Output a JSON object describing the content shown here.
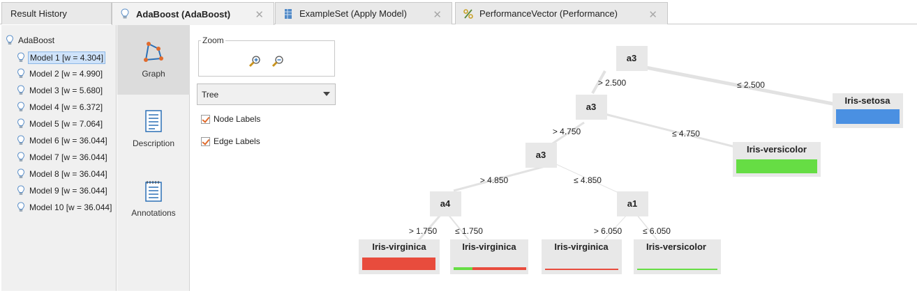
{
  "tabs": [
    {
      "label": "Result History",
      "icon": "",
      "active": false
    },
    {
      "label": "AdaBoost (AdaBoost)",
      "icon": "bulb-icon",
      "active": true
    },
    {
      "label": "ExampleSet (Apply Model)",
      "icon": "table-icon",
      "active": false
    },
    {
      "label": "PerformanceVector (Performance)",
      "icon": "percent-icon",
      "active": false
    }
  ],
  "tree": {
    "root": "AdaBoost",
    "selected_index": 0,
    "items": [
      "Model 1 [w = 4.304]",
      "Model 2 [w = 4.990]",
      "Model 3 [w = 5.680]",
      "Model 4 [w = 6.372]",
      "Model 5 [w = 7.064]",
      "Model 6 [w = 36.044]",
      "Model 7 [w = 36.044]",
      "Model 8 [w = 36.044]",
      "Model 9 [w = 36.044]",
      "Model 10 [w = 36.044]"
    ]
  },
  "views": [
    {
      "label": "Graph",
      "icon": "graph-icon",
      "active": true
    },
    {
      "label": "Description",
      "icon": "document-icon",
      "active": false
    },
    {
      "label": "Annotations",
      "icon": "notepad-icon",
      "active": false
    }
  ],
  "controls": {
    "zoom_label": "Zoom",
    "layout_select": "Tree",
    "node_labels": "Node Labels",
    "edge_labels": "Edge Labels"
  },
  "decision_tree": {
    "nodes": {
      "n_root": "a3",
      "n_a3b": "a3",
      "n_a3c": "a3",
      "n_a4": "a4",
      "n_a1": "a1",
      "leaf_setosa": "Iris-setosa",
      "leaf_vers1": "Iris-versicolor",
      "leaf_virg1": "Iris-virginica",
      "leaf_virg2": "Iris-virginica",
      "leaf_virg3": "Iris-virginica",
      "leaf_vers2": "Iris-versicolor"
    },
    "edges": {
      "e1": "> 2.500",
      "e2": "≤ 2.500",
      "e3": "> 4.750",
      "e4": "≤ 4.750",
      "e5": "> 4.850",
      "e6": "≤ 4.850",
      "e7": "> 1.750",
      "e8": "≤ 1.750",
      "e9": "> 6.050",
      "e10": "≤ 6.050"
    },
    "class_colors": {
      "Iris-setosa": "#4a90e2",
      "Iris-versicolor": "#66dd44",
      "Iris-virginica": "#e84c3d"
    }
  }
}
